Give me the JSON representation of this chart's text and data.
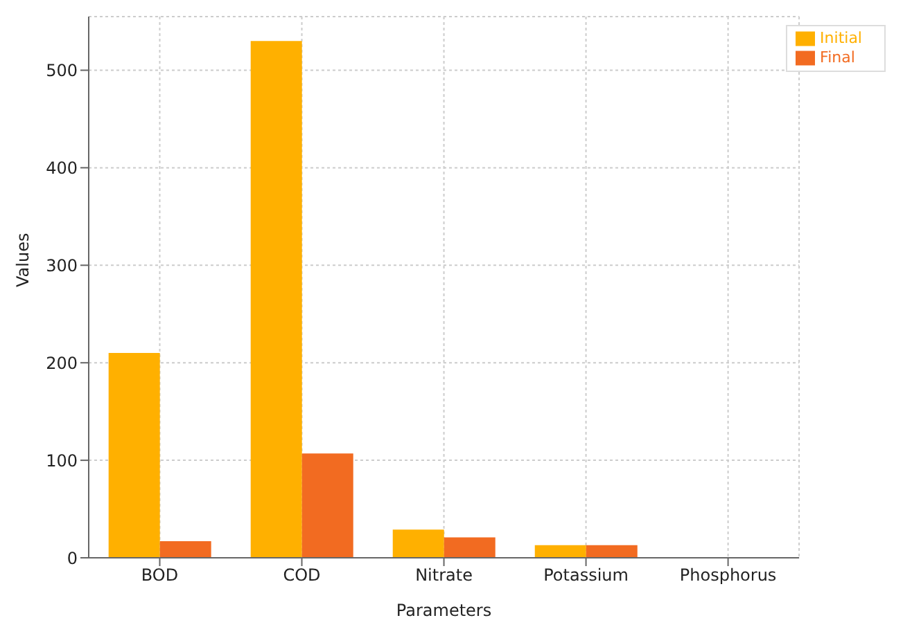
{
  "chart_data": {
    "type": "bar",
    "xlabel": "Parameters",
    "ylabel": "Values",
    "categories": [
      "BOD",
      "COD",
      "Nitrate",
      "Potassium",
      "Phosphorus"
    ],
    "series": [
      {
        "name": "Initial",
        "color": "#ffb000",
        "values": [
          210,
          530,
          29,
          13,
          null
        ]
      },
      {
        "name": "Final",
        "color": "#f26b21",
        "values": [
          17,
          107,
          21,
          13,
          null
        ]
      }
    ],
    "ylim": [
      0,
      555
    ],
    "yticks": [
      0,
      100,
      200,
      300,
      400,
      500
    ],
    "grid": true,
    "legend": "top right"
  }
}
